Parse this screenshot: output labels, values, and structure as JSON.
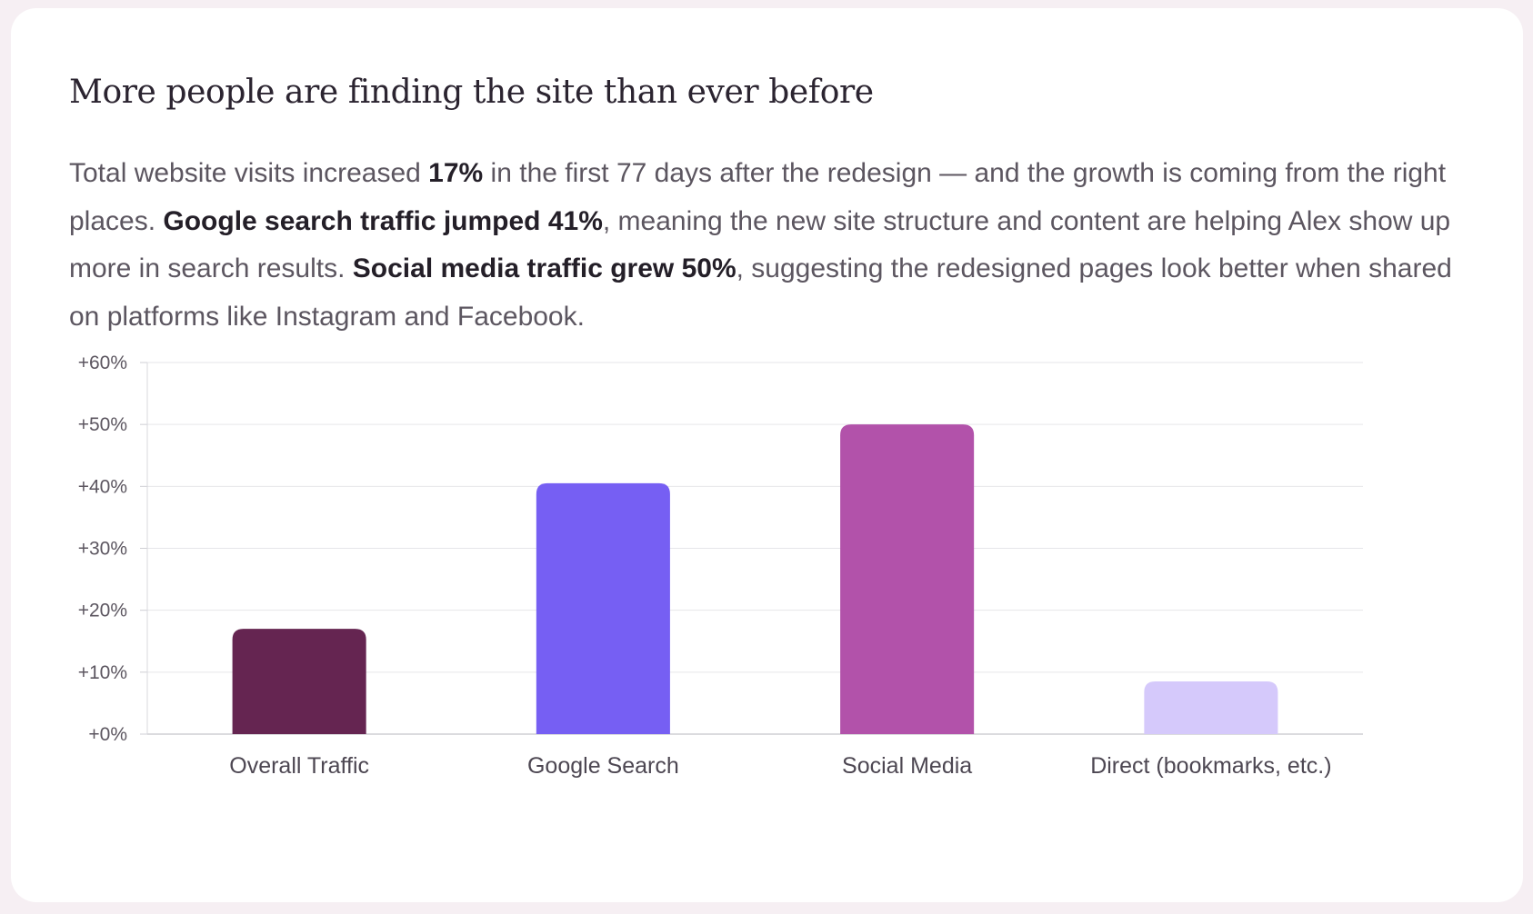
{
  "card": {
    "title": "More people are finding the site than ever before",
    "paragraph": [
      {
        "text": "Total website visits increased ",
        "bold": false
      },
      {
        "text": "17%",
        "bold": true
      },
      {
        "text": " in the first 77 days after the redesign — and the growth is coming from the right places. ",
        "bold": false
      },
      {
        "text": "Google search traffic jumped 41%",
        "bold": true
      },
      {
        "text": ", meaning the new site structure and content are helping Alex show up more in search results. ",
        "bold": false
      },
      {
        "text": "Social media traffic grew 50%",
        "bold": true
      },
      {
        "text": ", suggesting the redesigned pages look better when shared on platforms like Instagram and Facebook.",
        "bold": false
      }
    ]
  },
  "chart_data": {
    "type": "bar",
    "title": "",
    "xlabel": "",
    "ylabel": "",
    "categories": [
      "Overall Traffic",
      "Google Search",
      "Social Media",
      "Direct (bookmarks, etc.)"
    ],
    "values": [
      17,
      40.5,
      50,
      8.5
    ],
    "colors": [
      "#652551",
      "#765ff3",
      "#b252aa",
      "#d5c9fb"
    ],
    "ylim": [
      0,
      60
    ],
    "yticks": [
      0,
      10,
      20,
      30,
      40,
      50,
      60
    ],
    "ytick_labels": [
      "+0%",
      "+10%",
      "+20%",
      "+30%",
      "+40%",
      "+50%",
      "+60%"
    ],
    "grid": true,
    "legend": "none"
  }
}
